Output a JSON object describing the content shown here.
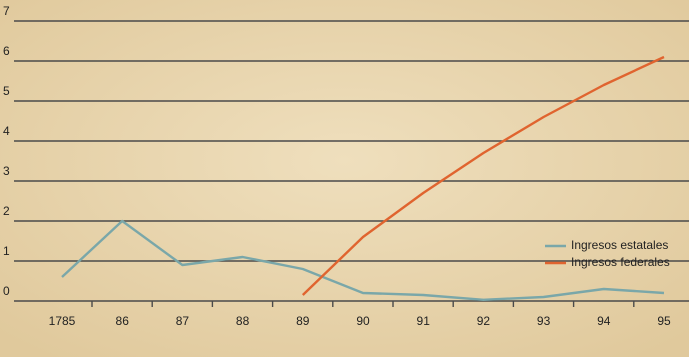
{
  "chart_data": {
    "type": "line",
    "categories": [
      "1785",
      "86",
      "87",
      "88",
      "89",
      "90",
      "91",
      "92",
      "93",
      "94",
      "95"
    ],
    "series": [
      {
        "name": "Ingresos estatales",
        "color": "#7aa7a9",
        "values": [
          0.6,
          2.0,
          0.9,
          1.1,
          0.8,
          0.2,
          0.15,
          0.03,
          0.1,
          0.3,
          0.2
        ]
      },
      {
        "name": "Ingresos federales",
        "color": "#e0642f",
        "values": [
          null,
          null,
          null,
          null,
          0.15,
          1.6,
          2.7,
          3.7,
          4.6,
          5.4,
          6.1
        ]
      }
    ],
    "ylim": [
      0,
      7
    ],
    "yticks": [
      0,
      1,
      2,
      3,
      4,
      5,
      6,
      7
    ],
    "grid": true,
    "legend": "right"
  }
}
